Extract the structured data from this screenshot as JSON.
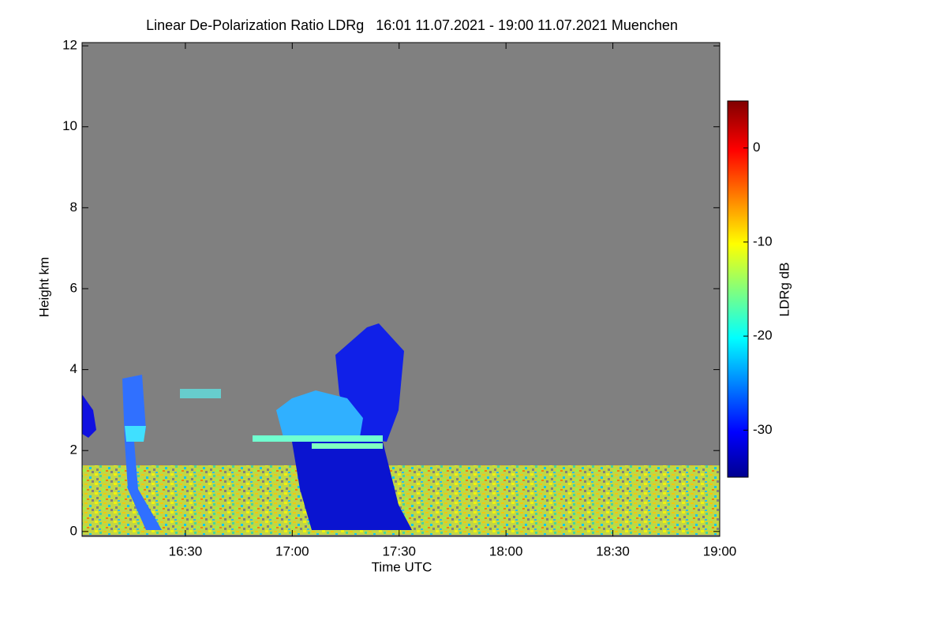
{
  "chart_data": {
    "type": "heatmap",
    "title": "Linear De-Polarization Ratio LDRg   16:01 11.07.2021 - 19:00 11.07.2021 Muenchen",
    "xlabel": "Time UTC",
    "ylabel": "Height km",
    "xlim": [
      "16:01",
      "19:00"
    ],
    "xticks": [
      "16:30",
      "17:00",
      "17:30",
      "18:00",
      "18:30",
      "19:00"
    ],
    "ylim": [
      -0.12,
      12.08
    ],
    "yticks": [
      0,
      2,
      4,
      6,
      8,
      10,
      12
    ],
    "background": "#808080",
    "colorbar": {
      "label": "LDRg dB",
      "lim": [
        -35,
        5
      ],
      "ticks": [
        -30,
        -20,
        -10,
        0
      ],
      "colormap": "jet"
    }
  }
}
